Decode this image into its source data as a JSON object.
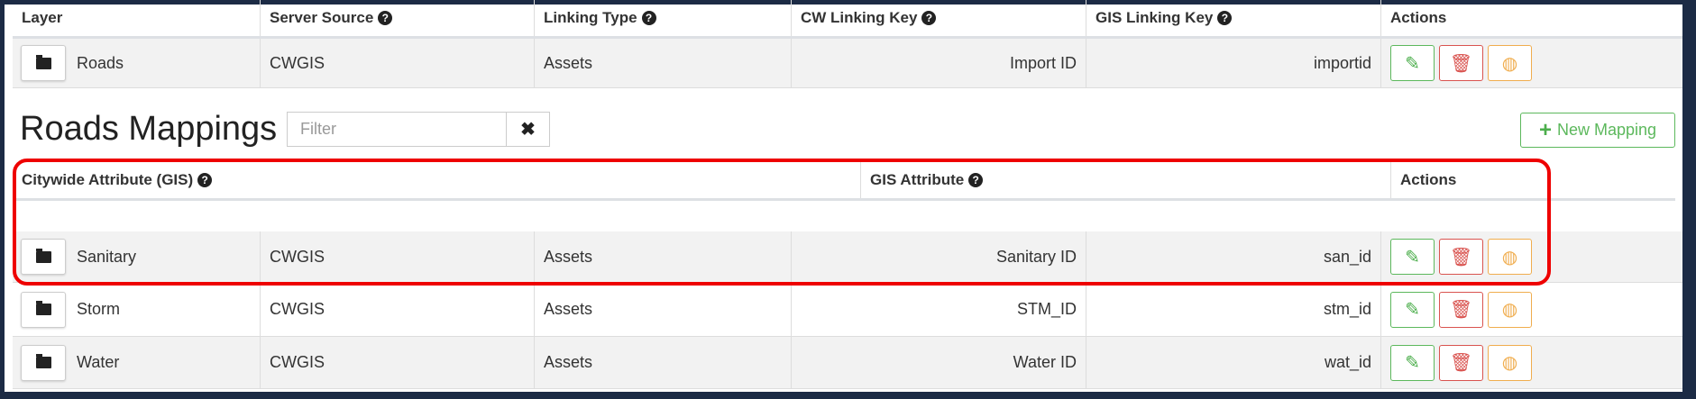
{
  "layers_table": {
    "headers": [
      "Layer",
      "Server Source",
      "Linking Type",
      "CW Linking Key",
      "GIS Linking Key",
      "Actions"
    ],
    "header_help": [
      false,
      true,
      true,
      true,
      true,
      false
    ],
    "rows": [
      {
        "layer": "Roads",
        "server_source": "CWGIS",
        "linking_type": "Assets",
        "cw_key": "Import ID",
        "gis_key": "importid"
      },
      {
        "layer": "Sanitary",
        "server_source": "CWGIS",
        "linking_type": "Assets",
        "cw_key": "Sanitary ID",
        "gis_key": "san_id"
      },
      {
        "layer": "Storm",
        "server_source": "CWGIS",
        "linking_type": "Assets",
        "cw_key": "STM_ID",
        "gis_key": "stm_id"
      },
      {
        "layer": "Water",
        "server_source": "CWGIS",
        "linking_type": "Assets",
        "cw_key": "Water ID",
        "gis_key": "wat_id"
      }
    ]
  },
  "mappings": {
    "title": "Roads Mappings",
    "filter_placeholder": "Filter",
    "filter_value": "",
    "clear_label": "✖",
    "new_mapping_label": "New Mapping",
    "headers": [
      "Citywide Attribute (GIS)",
      "GIS Attribute",
      "Actions"
    ],
    "rows": []
  },
  "icons": {
    "layer": "folder-icon",
    "edit": "pencil-icon",
    "delete": "trash-icon",
    "map": "globe-icon",
    "help": "question-circle-icon",
    "add": "plus-icon"
  },
  "colors": {
    "edit": "#5cb85c",
    "delete": "#d9534f",
    "map": "#f0ad4e",
    "highlight": "#e00000",
    "frame": "#1c2b45"
  }
}
